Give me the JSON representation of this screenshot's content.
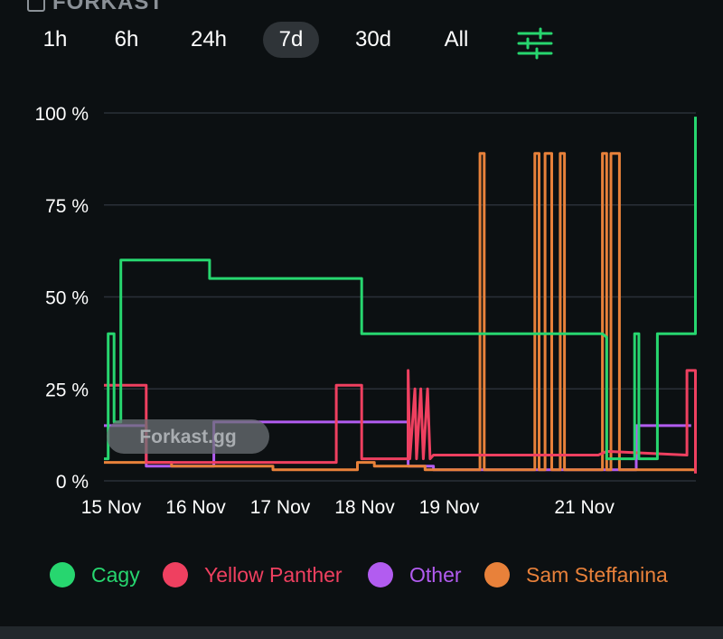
{
  "header": {
    "logo_text": "FORKAST"
  },
  "tabs": [
    {
      "label": "1h",
      "active": false
    },
    {
      "label": "6h",
      "active": false
    },
    {
      "label": "24h",
      "active": false
    },
    {
      "label": "7d",
      "active": true
    },
    {
      "label": "30d",
      "active": false
    },
    {
      "label": "All",
      "active": false
    }
  ],
  "filter_icon": "sliders-icon",
  "watermark": "Forkast.gg",
  "colors": {
    "accent": "#27d66f",
    "grid": "#2a3038",
    "axis_text": "#ffffff"
  },
  "chart_data": {
    "type": "line",
    "y_ticks": [
      "0 %",
      "25 %",
      "50 %",
      "75 %",
      "100 %"
    ],
    "ylim": [
      0,
      100
    ],
    "x_ticks": [
      {
        "label": "15 Nov",
        "t": 0
      },
      {
        "label": "16 Nov",
        "t": 1
      },
      {
        "label": "17 Nov",
        "t": 2
      },
      {
        "label": "18 Nov",
        "t": 3
      },
      {
        "label": "19 Nov",
        "t": 4
      },
      {
        "label": "21 Nov",
        "t": 5.6
      }
    ],
    "xlim": [
      0,
      7
    ],
    "grid": true,
    "legend_position": "bottom",
    "series": [
      {
        "name": "Cagy",
        "color": "#27d66f",
        "points": [
          [
            0,
            6
          ],
          [
            0.05,
            6
          ],
          [
            0.05,
            40
          ],
          [
            0.12,
            40
          ],
          [
            0.12,
            16
          ],
          [
            0.2,
            16
          ],
          [
            0.2,
            60
          ],
          [
            1.25,
            60
          ],
          [
            1.25,
            55
          ],
          [
            3.05,
            55
          ],
          [
            3.05,
            40
          ],
          [
            5.9,
            40
          ],
          [
            5.95,
            39
          ],
          [
            5.95,
            6
          ],
          [
            6.28,
            6
          ],
          [
            6.28,
            40
          ],
          [
            6.33,
            40
          ],
          [
            6.33,
            6
          ],
          [
            6.55,
            6
          ],
          [
            6.55,
            40
          ],
          [
            7.0,
            40
          ],
          [
            7.0,
            99
          ]
        ]
      },
      {
        "name": "Yellow Panther",
        "color": "#ef4060",
        "points": [
          [
            0,
            26
          ],
          [
            0.5,
            26
          ],
          [
            0.5,
            5
          ],
          [
            2.75,
            5
          ],
          [
            2.75,
            26
          ],
          [
            3.05,
            26
          ],
          [
            3.05,
            6
          ],
          [
            3.6,
            6
          ],
          [
            3.6,
            30
          ],
          [
            3.62,
            6
          ],
          [
            3.68,
            25
          ],
          [
            3.7,
            6
          ],
          [
            3.75,
            25
          ],
          [
            3.78,
            6
          ],
          [
            3.83,
            25
          ],
          [
            3.86,
            6
          ],
          [
            3.9,
            7
          ],
          [
            5.85,
            7
          ],
          [
            5.95,
            8
          ],
          [
            6.9,
            7
          ],
          [
            6.9,
            30
          ],
          [
            7.0,
            30
          ],
          [
            7.0,
            2
          ]
        ]
      },
      {
        "name": "Other",
        "color": "#b25cf0",
        "points": [
          [
            0,
            15
          ],
          [
            0.5,
            15
          ],
          [
            0.5,
            4
          ],
          [
            1.3,
            4
          ],
          [
            1.3,
            16
          ],
          [
            3.6,
            16
          ],
          [
            3.6,
            4
          ],
          [
            3.9,
            4
          ],
          [
            3.9,
            3
          ],
          [
            6.3,
            3
          ],
          [
            6.3,
            15
          ],
          [
            6.95,
            15
          ]
        ]
      },
      {
        "name": "Sam Steffanina",
        "color": "#e8813a",
        "points": [
          [
            0,
            5
          ],
          [
            0.8,
            5
          ],
          [
            0.8,
            4
          ],
          [
            2.0,
            4
          ],
          [
            2.0,
            3
          ],
          [
            3.0,
            3
          ],
          [
            3.0,
            5
          ],
          [
            3.2,
            5
          ],
          [
            3.2,
            4
          ],
          [
            3.8,
            4
          ],
          [
            3.8,
            3
          ],
          [
            4.45,
            3
          ],
          [
            4.45,
            89
          ],
          [
            4.5,
            89
          ],
          [
            4.5,
            3
          ],
          [
            5.1,
            3
          ],
          [
            5.1,
            89
          ],
          [
            5.15,
            89
          ],
          [
            5.15,
            3
          ],
          [
            5.22,
            3
          ],
          [
            5.22,
            89
          ],
          [
            5.3,
            89
          ],
          [
            5.3,
            3
          ],
          [
            5.4,
            3
          ],
          [
            5.4,
            89
          ],
          [
            5.45,
            89
          ],
          [
            5.45,
            3
          ],
          [
            5.9,
            3
          ],
          [
            5.9,
            89
          ],
          [
            5.95,
            89
          ],
          [
            5.95,
            3
          ],
          [
            6.0,
            3
          ],
          [
            6.0,
            89
          ],
          [
            6.1,
            89
          ],
          [
            6.1,
            3
          ],
          [
            7.0,
            3
          ]
        ]
      }
    ]
  }
}
